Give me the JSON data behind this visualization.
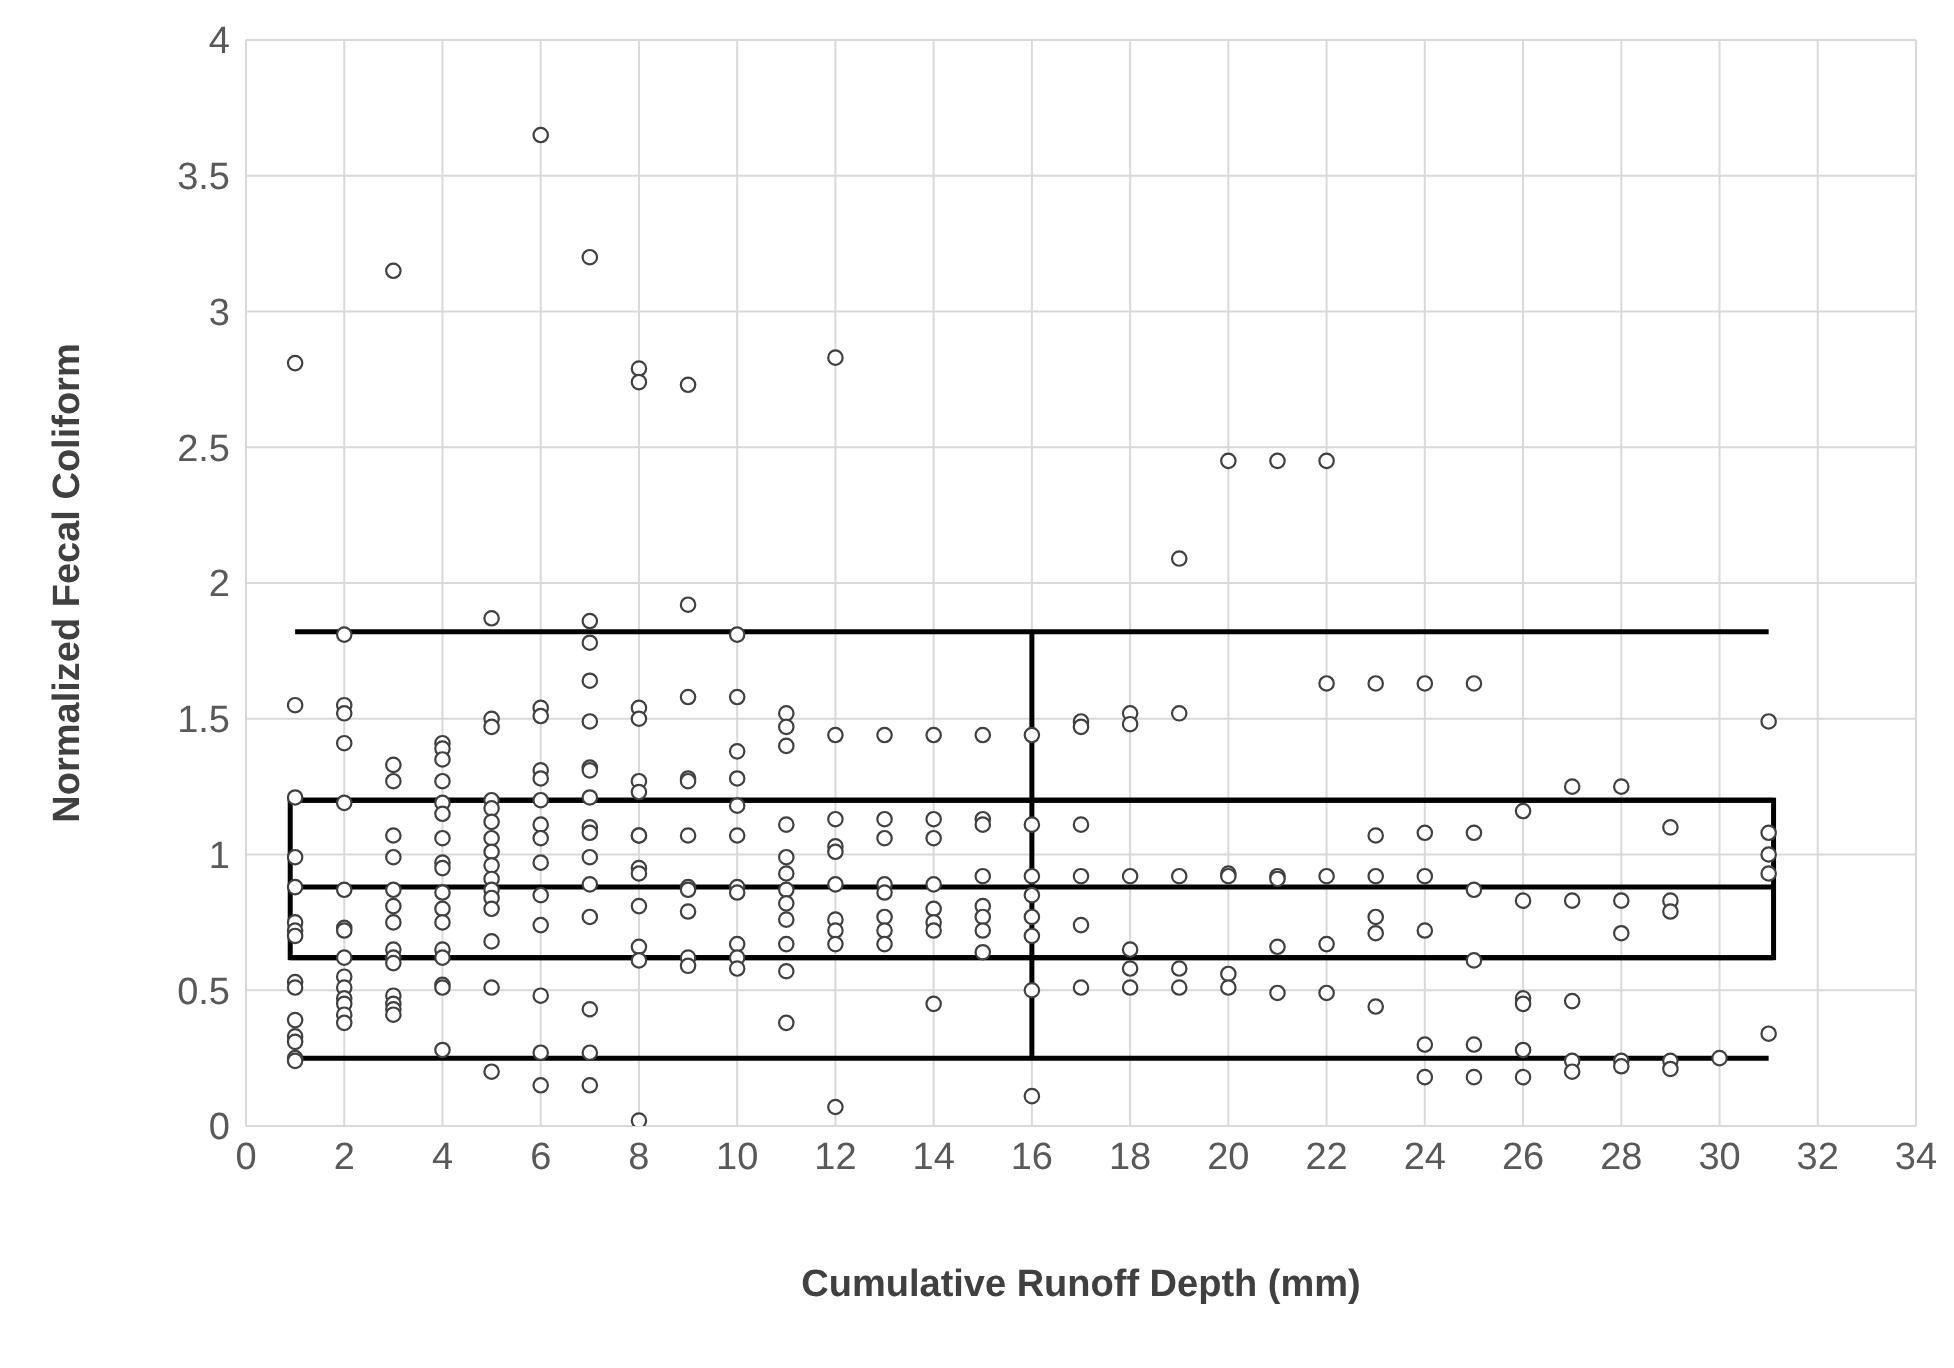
{
  "chart_data": {
    "type": "scatter",
    "xlabel": "Cumulative Runoff Depth (mm)",
    "ylabel": "Normalized Fecal Coliform",
    "xlim": [
      0,
      34
    ],
    "xticks": [
      0,
      2,
      4,
      6,
      8,
      10,
      12,
      14,
      16,
      18,
      20,
      22,
      24,
      26,
      28,
      30,
      32,
      34
    ],
    "ylim": [
      0,
      4
    ],
    "yticks": [
      0,
      0.5,
      1,
      1.5,
      2,
      2.5,
      3,
      3.5,
      4
    ],
    "grid": true,
    "legend": false,
    "marker": "circle",
    "series": [
      {
        "color": "#404040",
        "x": [
          1,
          1,
          1,
          1,
          1,
          1,
          1,
          1,
          1,
          1,
          1,
          1,
          1,
          1,
          1,
          2,
          2,
          2,
          2,
          2,
          2,
          2,
          2,
          2,
          2,
          2,
          2,
          2,
          2,
          2,
          3,
          3,
          3,
          3,
          3,
          3,
          3,
          3,
          3,
          3,
          3,
          3,
          3,
          3,
          3,
          4,
          4,
          4,
          4,
          4,
          4,
          4,
          4,
          4,
          4,
          4,
          4,
          4,
          4,
          4,
          4,
          4,
          5,
          5,
          5,
          5,
          5,
          5,
          5,
          5,
          5,
          5,
          5,
          5,
          5,
          5,
          5,
          5,
          6,
          6,
          6,
          6,
          6,
          6,
          6,
          6,
          6,
          6,
          6,
          6,
          6,
          6,
          7,
          7,
          7,
          7,
          7,
          7,
          7,
          7,
          7,
          7,
          7,
          7,
          7,
          7,
          7,
          7,
          8,
          8,
          8,
          8,
          8,
          8,
          8,
          8,
          8,
          8,
          8,
          8,
          8,
          8,
          9,
          9,
          9,
          9,
          9,
          9,
          9,
          9,
          9,
          9,
          9,
          10,
          10,
          10,
          10,
          10,
          10,
          10,
          10,
          10,
          10,
          10,
          11,
          11,
          11,
          11,
          11,
          11,
          11,
          11,
          11,
          11,
          11,
          11,
          12,
          12,
          12,
          12,
          12,
          12,
          12,
          12,
          12,
          12,
          13,
          13,
          13,
          13,
          13,
          13,
          13,
          13,
          14,
          14,
          14,
          14,
          14,
          14,
          14,
          14,
          15,
          15,
          15,
          15,
          15,
          15,
          15,
          15,
          16,
          16,
          16,
          16,
          16,
          16,
          16,
          16,
          17,
          17,
          17,
          17,
          17,
          17,
          18,
          18,
          18,
          18,
          18,
          18,
          19,
          19,
          19,
          19,
          19,
          20,
          20,
          20,
          20,
          20,
          21,
          21,
          21,
          21,
          21,
          22,
          22,
          22,
          22,
          22,
          23,
          23,
          23,
          23,
          23,
          23,
          24,
          24,
          24,
          24,
          24,
          24,
          25,
          25,
          25,
          25,
          25,
          25,
          26,
          26,
          26,
          26,
          26,
          26,
          27,
          27,
          27,
          27,
          27,
          28,
          28,
          28,
          28,
          28,
          29,
          29,
          29,
          29,
          29,
          30,
          31,
          31,
          31,
          31,
          31
        ],
        "values": [
          2.81,
          1.55,
          1.21,
          0.99,
          0.88,
          0.75,
          0.72,
          0.7,
          0.53,
          0.51,
          0.39,
          0.33,
          0.31,
          0.25,
          0.24,
          1.81,
          1.55,
          1.52,
          1.41,
          1.19,
          0.87,
          0.73,
          0.72,
          0.62,
          0.55,
          0.51,
          0.47,
          0.45,
          0.41,
          0.38,
          3.15,
          1.33,
          1.27,
          1.07,
          0.99,
          0.87,
          0.81,
          0.75,
          0.65,
          0.62,
          0.6,
          0.48,
          0.45,
          0.43,
          0.41,
          1.41,
          1.39,
          1.35,
          1.27,
          1.19,
          1.15,
          1.06,
          0.97,
          0.95,
          0.86,
          0.8,
          0.75,
          0.65,
          0.62,
          0.52,
          0.51,
          0.28,
          1.87,
          1.5,
          1.47,
          1.2,
          1.17,
          1.12,
          1.06,
          1.01,
          0.96,
          0.91,
          0.87,
          0.84,
          0.8,
          0.68,
          0.51,
          0.2,
          3.65,
          1.54,
          1.51,
          1.31,
          1.28,
          1.2,
          1.11,
          1.06,
          0.97,
          0.85,
          0.74,
          0.48,
          0.27,
          0.15,
          3.2,
          1.86,
          1.78,
          1.64,
          1.49,
          1.32,
          1.31,
          1.21,
          1.1,
          1.08,
          0.99,
          0.89,
          0.77,
          0.43,
          0.27,
          0.15,
          2.79,
          2.74,
          1.54,
          1.5,
          1.27,
          1.23,
          1.07,
          1.07,
          0.95,
          0.93,
          0.81,
          0.66,
          0.61,
          0.02,
          2.73,
          1.92,
          1.58,
          1.28,
          1.27,
          1.07,
          0.88,
          0.87,
          0.79,
          0.62,
          0.59,
          1.81,
          1.58,
          1.38,
          1.28,
          1.18,
          1.07,
          0.88,
          0.86,
          0.67,
          0.62,
          0.58,
          1.52,
          1.47,
          1.4,
          1.11,
          0.99,
          0.93,
          0.87,
          0.82,
          0.76,
          0.67,
          0.57,
          0.38,
          2.83,
          1.44,
          1.13,
          1.03,
          1.01,
          0.89,
          0.76,
          0.72,
          0.67,
          0.07,
          1.44,
          1.13,
          1.06,
          0.89,
          0.86,
          0.77,
          0.72,
          0.67,
          1.44,
          1.13,
          1.06,
          0.89,
          0.8,
          0.75,
          0.72,
          0.45,
          1.44,
          1.13,
          1.11,
          0.92,
          0.81,
          0.77,
          0.72,
          0.64,
          1.44,
          1.11,
          0.92,
          0.85,
          0.77,
          0.7,
          0.5,
          0.11,
          1.49,
          1.47,
          1.11,
          0.92,
          0.74,
          0.51,
          1.52,
          1.48,
          0.92,
          0.65,
          0.58,
          0.51,
          2.09,
          1.52,
          0.92,
          0.58,
          0.51,
          2.45,
          0.93,
          0.92,
          0.56,
          0.51,
          2.45,
          0.92,
          0.91,
          0.66,
          0.49,
          2.45,
          1.63,
          0.92,
          0.67,
          0.49,
          1.63,
          1.07,
          0.92,
          0.77,
          0.71,
          0.44,
          1.63,
          1.08,
          0.92,
          0.72,
          0.3,
          0.18,
          1.63,
          1.08,
          0.87,
          0.61,
          0.3,
          0.18,
          1.16,
          0.83,
          0.47,
          0.45,
          0.28,
          0.18,
          1.25,
          0.83,
          0.46,
          0.24,
          0.2,
          1.25,
          0.83,
          0.71,
          0.24,
          0.22,
          1.1,
          0.83,
          0.79,
          0.24,
          0.21,
          0.25,
          1.49,
          1.08,
          1.0,
          0.93,
          0.34
        ]
      }
    ],
    "ref_lines": [
      {
        "axis": "y",
        "value": 0.25,
        "color": "#000000"
      },
      {
        "axis": "y",
        "value": 0.62,
        "color": "#000000"
      },
      {
        "axis": "y",
        "value": 0.88,
        "color": "#000000"
      },
      {
        "axis": "y",
        "value": 1.2,
        "color": "#000000"
      },
      {
        "axis": "y",
        "value": 1.82,
        "color": "#000000"
      },
      {
        "axis": "x",
        "value": 16,
        "color": "#000000"
      }
    ]
  }
}
